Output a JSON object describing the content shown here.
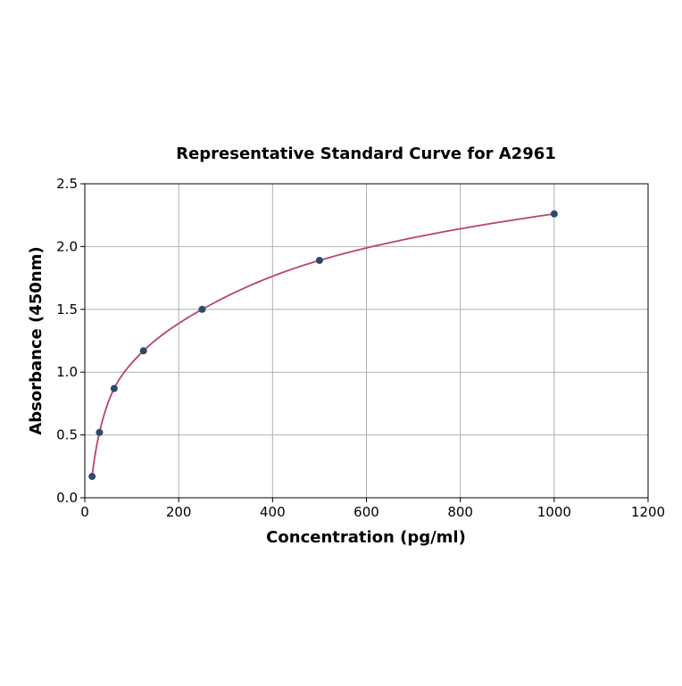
{
  "chart_data": {
    "type": "scatter",
    "title": "Representative Standard Curve for A2961",
    "xlabel": "Concentration (pg/ml)",
    "ylabel": "Absorbance (450nm)",
    "xlim": [
      0,
      1200
    ],
    "ylim": [
      0,
      2.5
    ],
    "xticks": [
      "0",
      "200",
      "400",
      "600",
      "800",
      "1000",
      "1200"
    ],
    "yticks": [
      "0.0",
      "0.5",
      "1.0",
      "1.5",
      "2.0",
      "2.5"
    ],
    "grid": true,
    "points": {
      "x": [
        15.6,
        31.25,
        62.5,
        125,
        250,
        500,
        1000
      ],
      "y": [
        0.17,
        0.52,
        0.87,
        1.17,
        1.5,
        1.89,
        2.26
      ]
    },
    "fit_curve": true,
    "colors": {
      "points": "#2e4a6b",
      "curve": "#b5456b",
      "grid": "#b0b0b0"
    }
  }
}
